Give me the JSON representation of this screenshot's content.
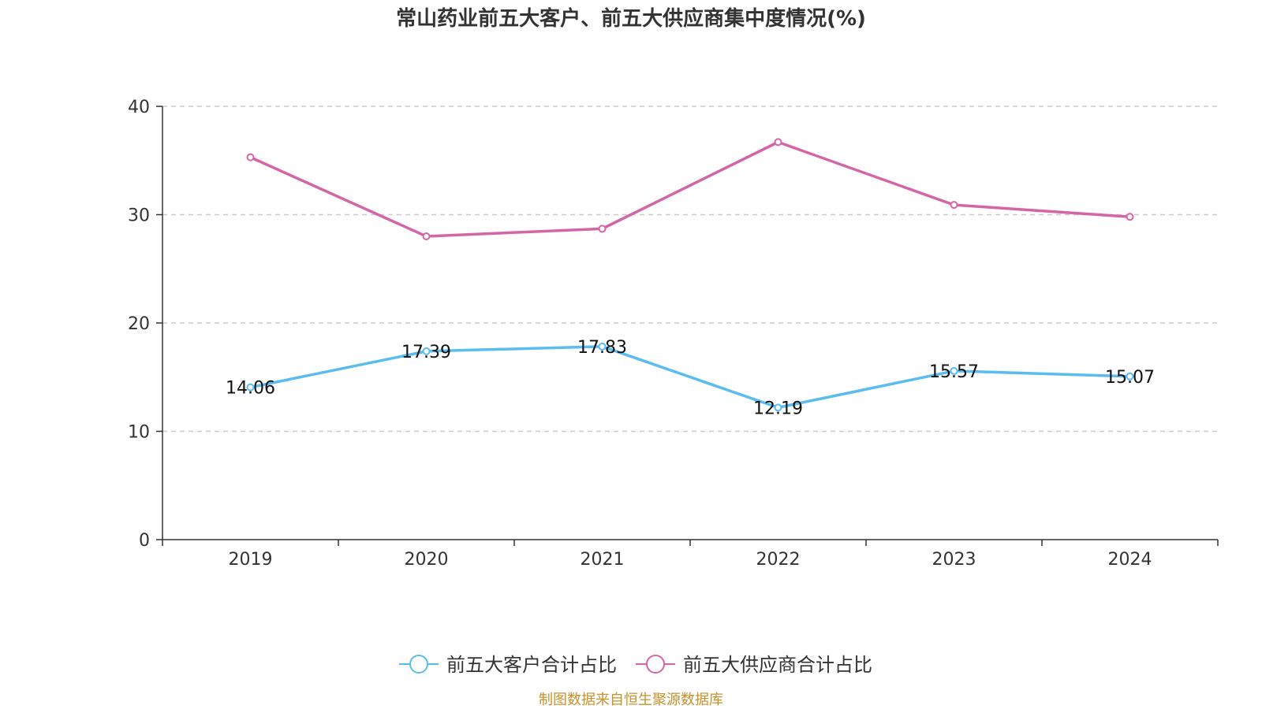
{
  "chart_data": {
    "type": "line",
    "title": "常山药业前五大客户、前五大供应商集中度情况(%)",
    "categories": [
      "2019",
      "2020",
      "2021",
      "2022",
      "2023",
      "2024"
    ],
    "ylim": [
      0,
      40
    ],
    "yticks": [
      0,
      10,
      20,
      30,
      40
    ],
    "grid": true,
    "legend_position": "bottom",
    "series": [
      {
        "name": "前五大客户合计占比",
        "color": "#5bbcf0",
        "values": [
          14.06,
          17.39,
          17.83,
          12.19,
          15.57,
          15.07
        ],
        "labels": [
          "14.06",
          "17.39",
          "17.83",
          "12.19",
          "15.57",
          "15.07"
        ],
        "show_labels": true
      },
      {
        "name": "前五大供应商合计占比",
        "color": "#d466a8",
        "values": [
          35.3,
          28.0,
          28.7,
          36.7,
          30.9,
          29.8
        ],
        "show_labels": false
      }
    ],
    "source": "制图数据来自恒生聚源数据库"
  }
}
